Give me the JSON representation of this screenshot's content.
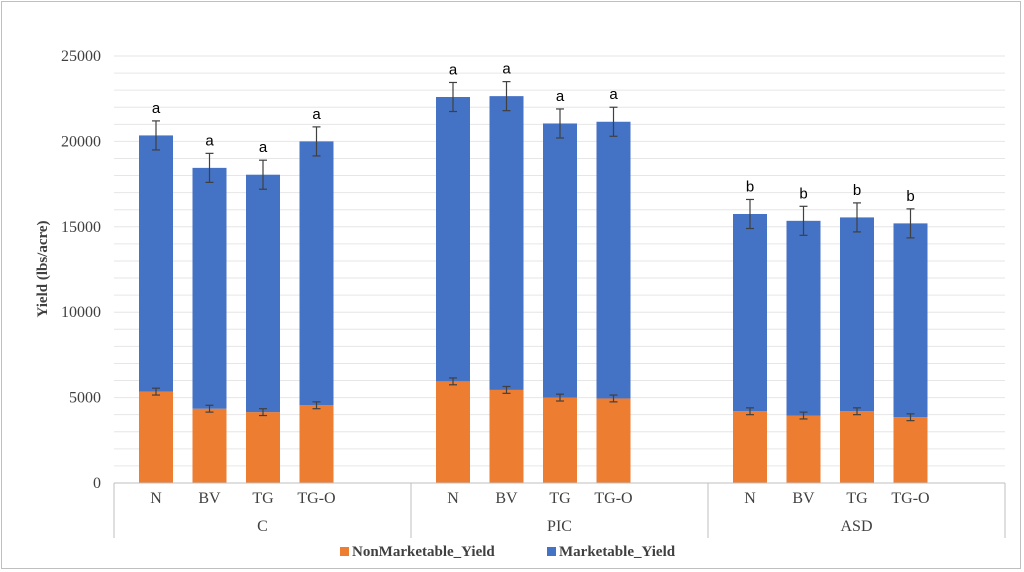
{
  "chart_data": {
    "type": "bar",
    "stacked": true,
    "title": "",
    "ylabel": "Yield (lbs/acre)",
    "ylim": [
      0,
      25000
    ],
    "yticks": [
      0,
      5000,
      10000,
      15000,
      20000,
      25000
    ],
    "grid": true,
    "legend_position": "bottom",
    "groups": [
      {
        "name": "C",
        "categories": [
          "N",
          "BV",
          "TG",
          "TG-O"
        ]
      },
      {
        "name": "PIC",
        "categories": [
          "N",
          "BV",
          "TG",
          "TG-O"
        ]
      },
      {
        "name": "ASD",
        "categories": [
          "N",
          "BV",
          "TG",
          "TG-O"
        ]
      }
    ],
    "series": [
      {
        "name": "NonMarketable_Yield",
        "color": "#ed7d31",
        "values": [
          5350,
          4350,
          4150,
          4550,
          5950,
          5450,
          5000,
          4950,
          4200,
          3950,
          4200,
          3850
        ],
        "errors": [
          200,
          200,
          200,
          200,
          200,
          200,
          200,
          200,
          200,
          200,
          200,
          200
        ]
      },
      {
        "name": "Marketable_Yield",
        "color": "#4472c4",
        "values": [
          15000,
          14100,
          13900,
          15450,
          16650,
          17200,
          16050,
          16200,
          11550,
          11400,
          11350,
          11350
        ],
        "errors": [
          850,
          850,
          850,
          850,
          850,
          850,
          850,
          850,
          850,
          850,
          850,
          850
        ]
      }
    ],
    "significance": [
      "a",
      "a",
      "a",
      "a",
      "a",
      "a",
      "a",
      "a",
      "b",
      "b",
      "b",
      "b"
    ]
  }
}
